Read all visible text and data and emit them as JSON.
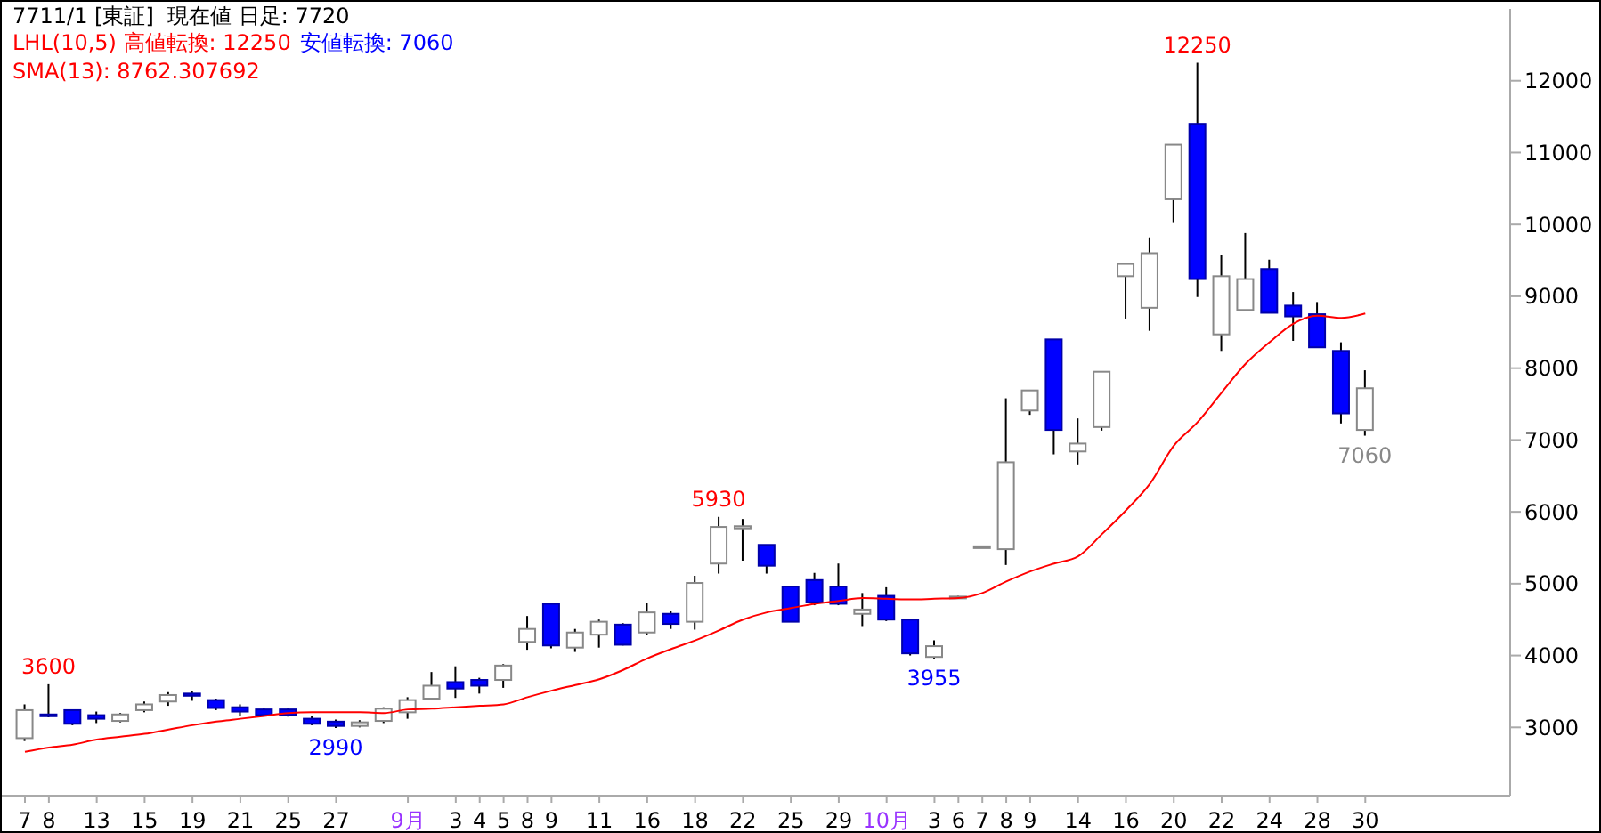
{
  "chart_data": {
    "type": "candlestick",
    "title": "7711/1 [東証]  現在値 日足: 7720",
    "categories": [
      "7",
      "8",
      null,
      "13",
      null,
      "15",
      null,
      "19",
      null,
      "21",
      null,
      "25",
      null,
      "27",
      null,
      null,
      "9月",
      null,
      "3",
      "4",
      "5",
      "8",
      "9",
      null,
      "11",
      null,
      "16",
      null,
      "18",
      null,
      "22",
      null,
      "25",
      null,
      "29",
      null,
      "10月",
      null,
      "3",
      "6",
      "7",
      "8",
      "9",
      null,
      "14",
      null,
      "16",
      null,
      "20",
      null,
      "22",
      null,
      "24",
      null,
      "28",
      null,
      "30"
    ],
    "ohlc": [
      [
        2850,
        3320,
        2810,
        3240
      ],
      [
        3180,
        3600,
        3140,
        3170
      ],
      [
        3240,
        3250,
        3030,
        3050
      ],
      [
        3170,
        3220,
        3060,
        3120
      ],
      [
        3090,
        3200,
        3070,
        3180
      ],
      [
        3240,
        3360,
        3210,
        3320
      ],
      [
        3360,
        3490,
        3300,
        3450
      ],
      [
        3470,
        3510,
        3370,
        3440
      ],
      [
        3380,
        3400,
        3240,
        3270
      ],
      [
        3280,
        3320,
        3160,
        3220
      ],
      [
        3250,
        3270,
        3160,
        3170
      ],
      [
        3250,
        3260,
        3150,
        3170
      ],
      [
        3120,
        3160,
        3030,
        3050
      ],
      [
        3080,
        3110,
        2990,
        3020
      ],
      [
        3020,
        3100,
        3000,
        3070
      ],
      [
        3090,
        3280,
        3060,
        3260
      ],
      [
        3210,
        3420,
        3120,
        3380
      ],
      [
        3400,
        3770,
        3400,
        3580
      ],
      [
        3630,
        3850,
        3410,
        3540
      ],
      [
        3660,
        3690,
        3470,
        3580
      ],
      [
        3660,
        3880,
        3550,
        3860
      ],
      [
        4190,
        4550,
        4080,
        4370
      ],
      [
        4720,
        4720,
        4100,
        4140
      ],
      [
        4110,
        4370,
        4050,
        4320
      ],
      [
        4290,
        4500,
        4110,
        4470
      ],
      [
        4430,
        4450,
        4140,
        4150
      ],
      [
        4320,
        4730,
        4290,
        4600
      ],
      [
        4580,
        4620,
        4370,
        4440
      ],
      [
        4470,
        5110,
        4360,
        5010
      ],
      [
        5280,
        5930,
        5140,
        5790
      ],
      [
        5770,
        5900,
        5320,
        5800
      ],
      [
        5540,
        5540,
        5140,
        5250
      ],
      [
        4960,
        4960,
        4470,
        4470
      ],
      [
        5050,
        5150,
        4700,
        4740
      ],
      [
        4960,
        5280,
        4700,
        4720
      ],
      [
        4580,
        4870,
        4410,
        4640
      ],
      [
        4830,
        4950,
        4480,
        4500
      ],
      [
        4500,
        4500,
        4000,
        4030
      ],
      [
        3980,
        4210,
        3955,
        4130
      ],
      [
        4820,
        4830,
        4810,
        4820
      ],
      [
        5520,
        5530,
        5510,
        5520
      ],
      [
        5480,
        7580,
        5260,
        6690
      ],
      [
        7410,
        7690,
        7350,
        7690
      ],
      [
        8400,
        8400,
        6800,
        7140
      ],
      [
        6840,
        7300,
        6660,
        6950
      ],
      [
        7180,
        7950,
        7130,
        7950
      ],
      [
        9280,
        9450,
        8690,
        9450
      ],
      [
        8840,
        9820,
        8520,
        9600
      ],
      [
        10350,
        11110,
        10020,
        11110
      ],
      [
        11400,
        12250,
        8990,
        9240
      ],
      [
        8470,
        9580,
        8240,
        9280
      ],
      [
        8810,
        9880,
        8790,
        9240
      ],
      [
        9380,
        9510,
        8770,
        8770
      ],
      [
        8870,
        9060,
        8380,
        8720
      ],
      [
        8750,
        8920,
        8290,
        8290
      ],
      [
        8240,
        8360,
        7230,
        7370
      ],
      [
        7140,
        7970,
        7060,
        7720
      ]
    ],
    "series": [
      {
        "type": "line",
        "name": "SMA(13): 8762.307692",
        "color": "#ff0000",
        "values": [
          2660,
          2720,
          2760,
          2830,
          2870,
          2910,
          2970,
          3030,
          3080,
          3120,
          3160,
          3200,
          3210,
          3210,
          3210,
          3200,
          3250,
          3260,
          3280,
          3300,
          3320,
          3420,
          3510,
          3590,
          3670,
          3800,
          3960,
          4090,
          4210,
          4350,
          4500,
          4600,
          4660,
          4720,
          4760,
          4800,
          4790,
          4780,
          4790,
          4800,
          4870,
          5030,
          5170,
          5280,
          5380,
          5690,
          6020,
          6390,
          6920,
          7250,
          7660,
          8060,
          8360,
          8620,
          8730,
          8700,
          8760
        ]
      }
    ],
    "ylim": [
      2050,
      13000
    ],
    "yticks": [
      3000,
      4000,
      5000,
      6000,
      7000,
      8000,
      9000,
      10000,
      11000,
      12000
    ],
    "annotations": [
      "LHL(10,5) 高値転換: 12250",
      "安値転換: 7060",
      {
        "text": "3600",
        "y": 3600
      },
      {
        "text": "2990",
        "y": 2990
      },
      {
        "text": "5930",
        "y": 5930
      },
      {
        "text": "3955",
        "y": 3955
      },
      {
        "text": "12250",
        "y": 12250
      },
      {
        "text": "7060",
        "y": 7060
      }
    ],
    "legend": "top left"
  }
}
